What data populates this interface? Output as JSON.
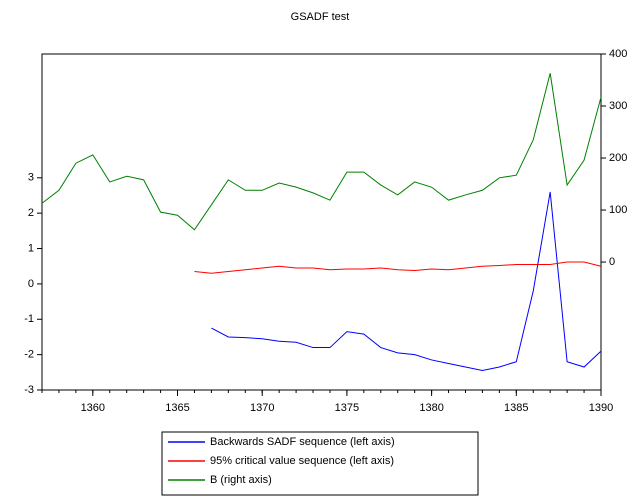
{
  "chart_data": {
    "type": "line",
    "title": "GSADF test",
    "x": [
      1357,
      1358,
      1359,
      1360,
      1361,
      1362,
      1363,
      1364,
      1365,
      1366,
      1367,
      1368,
      1369,
      1370,
      1371,
      1372,
      1373,
      1374,
      1375,
      1376,
      1377,
      1378,
      1379,
      1380,
      1381,
      1382,
      1383,
      1384,
      1385,
      1386,
      1387,
      1388,
      1389,
      1390
    ],
    "xlim": [
      1357,
      1390
    ],
    "xticks": [
      1360,
      1365,
      1370,
      1375,
      1380,
      1385,
      1390
    ],
    "ylim": [
      -3,
      6.5
    ],
    "yticks": [
      -3,
      -2,
      -1,
      0,
      1,
      2,
      3
    ],
    "y2lim": [
      -246,
      400
    ],
    "y2ticks": [
      0,
      100,
      200,
      300,
      400
    ],
    "series": [
      {
        "name": "Backwards SADF sequence (left axis)",
        "color": "#0000ff",
        "axis": "y",
        "values": [
          null,
          null,
          null,
          null,
          null,
          null,
          null,
          null,
          null,
          null,
          -1.25,
          -1.5,
          -1.52,
          -1.55,
          -1.62,
          -1.65,
          -1.8,
          -1.8,
          -1.35,
          -1.42,
          -1.8,
          -1.95,
          -2.0,
          -2.15,
          -2.25,
          -2.35,
          -2.45,
          -2.35,
          -2.2,
          -0.2,
          2.6,
          -2.2,
          -2.35,
          -1.9
        ]
      },
      {
        "name": "95% critical value sequence (left axis)",
        "color": "#ff0000",
        "axis": "y",
        "values": [
          null,
          null,
          null,
          null,
          null,
          null,
          null,
          null,
          null,
          0.35,
          0.3,
          0.35,
          0.4,
          0.45,
          0.5,
          0.45,
          0.45,
          0.4,
          0.42,
          0.42,
          0.45,
          0.4,
          0.38,
          0.42,
          0.4,
          0.45,
          0.5,
          0.52,
          0.55,
          0.55,
          0.55,
          0.62,
          0.62,
          0.5
        ]
      },
      {
        "name": "B (right axis)",
        "color": "#008000",
        "axis": "y2",
        "values": [
          113,
          138,
          190,
          206,
          154,
          165,
          158,
          96,
          90,
          62,
          110,
          158,
          138,
          138,
          152,
          144,
          133,
          119,
          173,
          173,
          148,
          129,
          154,
          144,
          119,
          129,
          138,
          162,
          167,
          235,
          363,
          148,
          196,
          317
        ]
      }
    ]
  }
}
